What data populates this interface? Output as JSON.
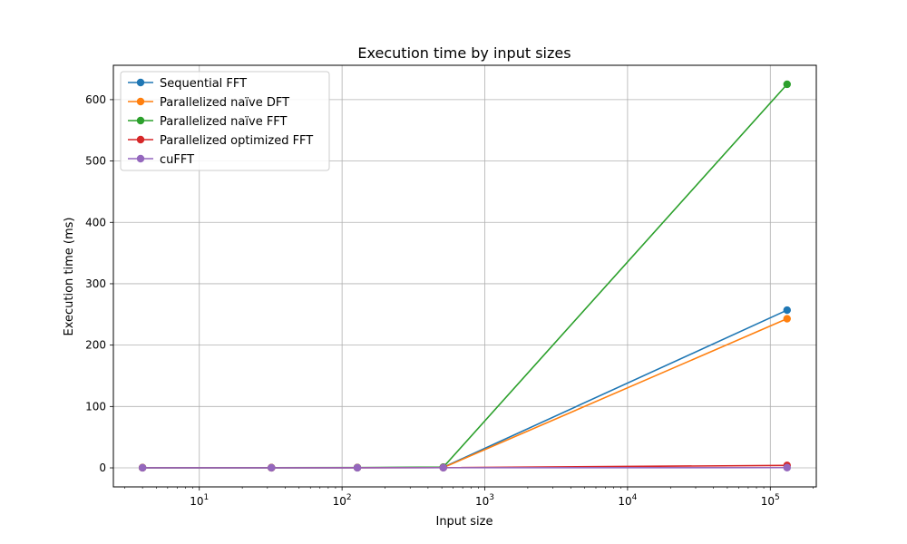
{
  "chart_data": {
    "type": "line",
    "title": "Execution time by input sizes",
    "xlabel": "Input size",
    "ylabel": "Execution time (ms)",
    "x_scale": "log",
    "x": [
      4,
      32,
      128,
      512,
      131072
    ],
    "xlim": [
      2.5,
      210000
    ],
    "ylim": [
      -31,
      656
    ],
    "x_ticks": [
      {
        "value": 10,
        "base": "10",
        "exp": "1"
      },
      {
        "value": 100,
        "base": "10",
        "exp": "2"
      },
      {
        "value": 1000,
        "base": "10",
        "exp": "3"
      },
      {
        "value": 10000,
        "base": "10",
        "exp": "4"
      },
      {
        "value": 100000,
        "base": "10",
        "exp": "5"
      }
    ],
    "y_ticks": [
      0,
      100,
      200,
      300,
      400,
      500,
      600
    ],
    "grid": true,
    "legend_position": "upper-left",
    "series": [
      {
        "name": "Sequential FFT",
        "color": "#1f77b4",
        "values": [
          0.1,
          0.1,
          0.2,
          0.9,
          257
        ]
      },
      {
        "name": "Parallelized naïve DFT",
        "color": "#ff7f0e",
        "values": [
          0.3,
          0.2,
          0.3,
          0.4,
          243
        ]
      },
      {
        "name": "Parallelized naïve FFT",
        "color": "#2ca02c",
        "values": [
          0.3,
          0.3,
          0.5,
          1.2,
          625
        ]
      },
      {
        "name": "Parallelized optimized FFT",
        "color": "#d62728",
        "values": [
          0.2,
          0.2,
          0.3,
          0.4,
          4
        ]
      },
      {
        "name": "cuFFT",
        "color": "#9467bd",
        "values": [
          0.1,
          0.1,
          0.1,
          0.2,
          0.4
        ]
      }
    ]
  }
}
